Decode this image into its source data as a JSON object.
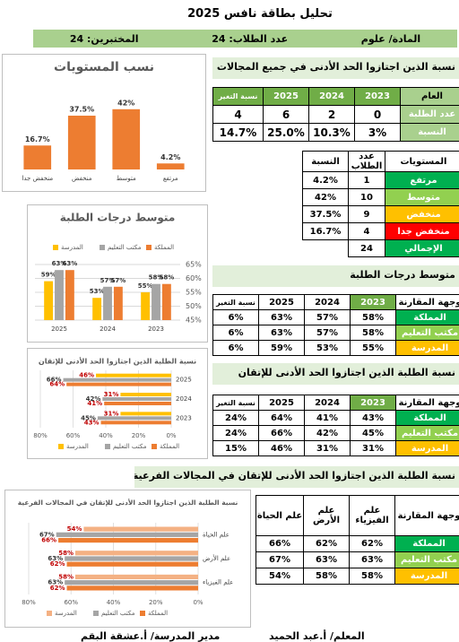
{
  "header": {
    "title": "تحليل  بطاقة نافس 2025",
    "subject": "المادة/  علوم",
    "students": "عدد الطلاب: 24",
    "tested": "المختبرين: 24"
  },
  "sections": [
    {
      "title": "نسبة الذين اجتازوا الحد الأدنى في جميع المجالات"
    },
    {
      "title": "متوسط درجات الطلبة"
    },
    {
      "title": "نسبة الطلبة الذين اجتازوا الحد الأدنى للإتقان"
    },
    {
      "title": "نسبة الطلبة الذين اجتازوا الحد الأدنى للإتقان في المجالات الفرعية"
    }
  ],
  "tables": [
    {
      "headers": [
        "العام",
        "2023",
        "2024",
        "2025",
        "نسبة التغير"
      ],
      "rows": [
        [
          "عدد الطلبة",
          "0",
          "2",
          "6",
          "4"
        ],
        [
          "النسبة",
          "3%",
          "10.3%",
          "25.0%",
          "14.7%"
        ]
      ]
    },
    {
      "headers": [
        "المستويات",
        "عدد الطلاب",
        "النسبة"
      ],
      "rows": [
        [
          "مرتفع",
          "1",
          "4.2%"
        ],
        [
          "متوسط",
          "10",
          "42%"
        ],
        [
          "منخفض",
          "9",
          "37.5%"
        ],
        [
          "منخفض جدا",
          "4",
          "16.7%"
        ],
        [
          "الإجمالي",
          "24"
        ]
      ]
    },
    {
      "headers": [
        "وجهة المقارنة",
        "2023",
        "2024",
        "2025",
        "نسبة التغير"
      ],
      "rows": [
        [
          "المملكة",
          "58%",
          "57%",
          "63%",
          "6%"
        ],
        [
          "مكتب التعليم",
          "58%",
          "57%",
          "63%",
          "6%"
        ],
        [
          "المدرسة",
          "55%",
          "53%",
          "59%",
          "6%"
        ]
      ]
    },
    {
      "headers": [
        "وجهة المقارنة",
        "2023",
        "2024",
        "2025",
        "نسبة التغير"
      ],
      "rows": [
        [
          "المملكة",
          "43%",
          "41%",
          "64%",
          "24%"
        ],
        [
          "مكتب التعليم",
          "45%",
          "42%",
          "66%",
          "24%"
        ],
        [
          "المدرسة",
          "31%",
          "31%",
          "46%",
          "15%"
        ]
      ]
    },
    {
      "headers": [
        "وجهة المقارنة",
        "علم الفيزياء",
        "علم الأرض",
        "علم الحياة"
      ],
      "rows": [
        [
          "المملكة",
          "62%",
          "62%",
          "66%"
        ],
        [
          "مكتب التعليم",
          "63%",
          "63%",
          "67%"
        ],
        [
          "المدرسة",
          "58%",
          "58%",
          "54%"
        ]
      ]
    }
  ],
  "chart_data": [
    {
      "type": "bar",
      "title": "نسب المستويات",
      "categories": [
        "منخفض جدا",
        "منخفض",
        "متوسط",
        "مرتفع"
      ],
      "values": [
        16.7,
        37.5,
        42,
        4.2
      ],
      "value_labels": [
        "16.7%",
        "37.5%",
        "42%",
        "4.2%"
      ],
      "color": "#ed7d31",
      "ylim": [
        0,
        50
      ]
    },
    {
      "type": "bar",
      "title": "متوسط درجات الطلبة",
      "categories": [
        "2025",
        "2024",
        "2023"
      ],
      "series": [
        {
          "name": "المدرسة",
          "color": "#ffc000",
          "values": [
            59,
            53,
            55
          ],
          "value_labels": [
            "59%",
            "53%",
            "55%"
          ]
        },
        {
          "name": "مكتب التعليم",
          "color": "#a5a5a5",
          "values": [
            63,
            57,
            58
          ],
          "value_labels": [
            "63%",
            "57%",
            "58%"
          ]
        },
        {
          "name": "المملكة",
          "color": "#ed7d31",
          "values": [
            63,
            57,
            58
          ],
          "value_labels": [
            "63%",
            "57%",
            "58%"
          ]
        }
      ],
      "ylim": [
        45,
        65
      ],
      "yticks": [
        {
          "value": 45,
          "label": "45%"
        },
        {
          "value": 50,
          "label": "50%"
        },
        {
          "value": 55,
          "label": "55%"
        },
        {
          "value": 60,
          "label": "60%"
        },
        {
          "value": 65,
          "label": "65%"
        }
      ],
      "grid": true
    },
    {
      "type": "barh",
      "title": "نسبة الطلبة الذين اجتازوا الحد الأدنى للإتقان",
      "categories": [
        "2025",
        "2024",
        "2023"
      ],
      "series": [
        {
          "name": "المدرسة",
          "color": "#ffc000",
          "values": [
            46,
            31,
            31
          ],
          "value_labels": [
            "46%",
            "31%",
            "31%"
          ]
        },
        {
          "name": "مكتب التعليم",
          "color": "#a5a5a5",
          "values": [
            66,
            42,
            45
          ],
          "value_labels": [
            "66%",
            "42%",
            "45%"
          ]
        },
        {
          "name": "المملكة",
          "color": "#ed7d31",
          "values": [
            64,
            41,
            43
          ],
          "value_labels": [
            "64%",
            "41%",
            "43%"
          ]
        }
      ],
      "xlim": [
        0,
        80
      ],
      "x_reversed": true,
      "xticks": [
        {
          "value": 80,
          "label": "80%"
        },
        {
          "value": 60,
          "label": "60%"
        },
        {
          "value": 40,
          "label": "40%"
        },
        {
          "value": 20,
          "label": "20%"
        },
        {
          "value": 0,
          "label": "0%"
        }
      ]
    },
    {
      "type": "barh",
      "title": "نسبة الطلبة الذين اجتازوا الحد الأدنى للإتقان في المجالات الفرعية",
      "categories": [
        "علم الحياة",
        "علم الأرض",
        "علم الفيزياء"
      ],
      "series": [
        {
          "name": "المدرسة",
          "color": "#f4b183",
          "values": [
            54,
            58,
            58
          ],
          "value_labels": [
            "54%",
            "58%",
            "58%"
          ]
        },
        {
          "name": "مكتب التعليم",
          "color": "#a5a5a5",
          "values": [
            67,
            63,
            63
          ],
          "value_labels": [
            "67%",
            "63%",
            "63%"
          ]
        },
        {
          "name": "المملكة",
          "color": "#ed7d31",
          "values": [
            66,
            62,
            62
          ],
          "value_labels": [
            "66%",
            "62%",
            "62%"
          ]
        }
      ],
      "xlim": [
        0,
        80
      ],
      "x_reversed": true,
      "xticks": [
        {
          "value": 80,
          "label": "80%"
        },
        {
          "value": 60,
          "label": "60%"
        },
        {
          "value": 40,
          "label": "40%"
        },
        {
          "value": 20,
          "label": "20%"
        },
        {
          "value": 0,
          "label": "0%"
        }
      ]
    }
  ],
  "footer": {
    "teacher": "المعلم/ أ.عبد الحميد",
    "principal": "مدير المدرسة/ أ.عشقة البقم"
  }
}
